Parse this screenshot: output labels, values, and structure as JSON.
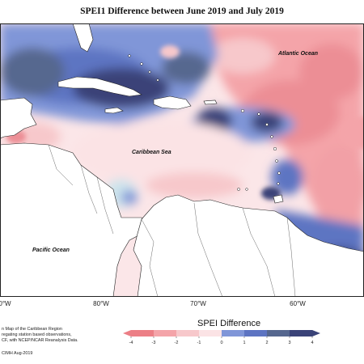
{
  "map": {
    "title": "SPEI1 Difference between June 2019 and July 2019",
    "labels": {
      "atlantic": "Atlantic Ocean",
      "caribbean": "Caribbean Sea",
      "pacific": "Pacific Ocean"
    },
    "longitude_ticks": [
      {
        "label": "0°W"
      },
      {
        "label": "80°W"
      },
      {
        "label": "70°W"
      },
      {
        "label": "60°W"
      }
    ],
    "info_lines": [
      "n Map of the Caribbean Region",
      "regating station based observations,",
      "CF, with NCEP/NCAR Reanalysis Data."
    ],
    "credit": "CIMH Aug-2019"
  },
  "legend": {
    "title": "SPEI Difference",
    "tick_labels": [
      "-4",
      "-3",
      "-2",
      "-1",
      "0",
      "1",
      "2",
      "3",
      "4"
    ],
    "colors": [
      "#ec7f86",
      "#f4a4a9",
      "#f7c8cb",
      "#fbe3e5",
      "#cde4ec",
      "#8096d8",
      "#5d74c2",
      "#56678f",
      "#3a4378"
    ]
  }
}
